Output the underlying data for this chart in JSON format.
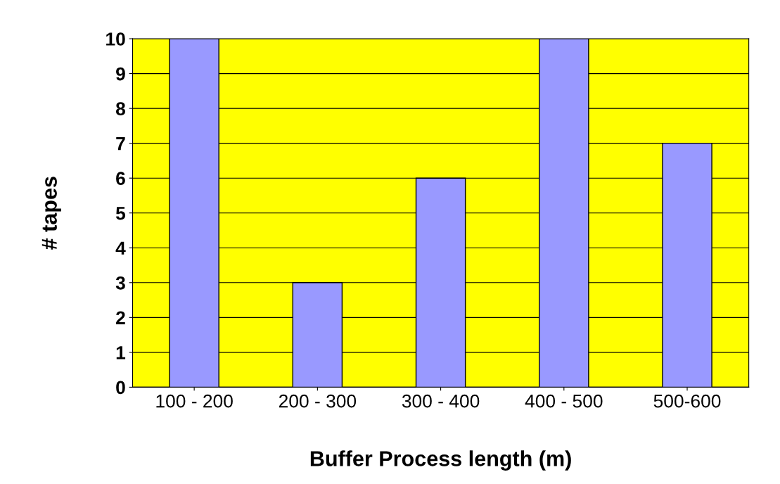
{
  "chart_data": {
    "type": "bar",
    "xlabel": "Buffer Process length (m)",
    "ylabel": "# tapes",
    "categories": [
      "100 - 200",
      "200 - 300",
      "300 - 400",
      "400 - 500",
      "500-600"
    ],
    "values": [
      10,
      3,
      6,
      10,
      7
    ],
    "color": "#9999ff",
    "ylim": [
      0,
      10
    ],
    "yticks": [
      0,
      1,
      2,
      3,
      4,
      5,
      6,
      7,
      8,
      9,
      10
    ],
    "grid": "y"
  }
}
